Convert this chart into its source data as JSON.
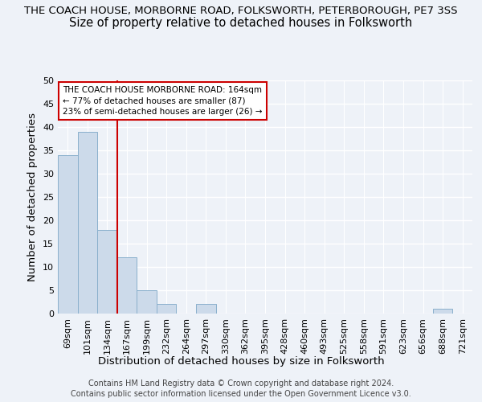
{
  "title": "THE COACH HOUSE, MORBORNE ROAD, FOLKSWORTH, PETERBOROUGH, PE7 3SS",
  "subtitle": "Size of property relative to detached houses in Folksworth",
  "xlabel": "Distribution of detached houses by size in Folksworth",
  "ylabel": "Number of detached properties",
  "categories": [
    "69sqm",
    "101sqm",
    "134sqm",
    "167sqm",
    "199sqm",
    "232sqm",
    "264sqm",
    "297sqm",
    "330sqm",
    "362sqm",
    "395sqm",
    "428sqm",
    "460sqm",
    "493sqm",
    "525sqm",
    "558sqm",
    "591sqm",
    "623sqm",
    "656sqm",
    "688sqm",
    "721sqm"
  ],
  "values": [
    34,
    39,
    18,
    12,
    5,
    2,
    0,
    2,
    0,
    0,
    0,
    0,
    0,
    0,
    0,
    0,
    0,
    0,
    0,
    1,
    0
  ],
  "bar_color": "#ccdaea",
  "bar_edge_color": "#8ab0cc",
  "vline_x": 2.5,
  "vline_color": "#cc0000",
  "ylim": [
    0,
    50
  ],
  "yticks": [
    0,
    5,
    10,
    15,
    20,
    25,
    30,
    35,
    40,
    45,
    50
  ],
  "annotation_line1": "THE COACH HOUSE MORBORNE ROAD: 164sqm",
  "annotation_line2": "← 77% of detached houses are smaller (87)",
  "annotation_line3": "23% of semi-detached houses are larger (26) →",
  "annotation_box_bg": "#ffffff",
  "annotation_box_edge": "#cc0000",
  "footer_line1": "Contains HM Land Registry data © Crown copyright and database right 2024.",
  "footer_line2": "Contains public sector information licensed under the Open Government Licence v3.0.",
  "background_color": "#eef2f8",
  "grid_color": "#ffffff",
  "title_fontsize": 9.5,
  "subtitle_fontsize": 10.5,
  "axis_label_fontsize": 9.5,
  "tick_fontsize": 8,
  "footer_fontsize": 7,
  "annotation_fontsize": 7.5
}
